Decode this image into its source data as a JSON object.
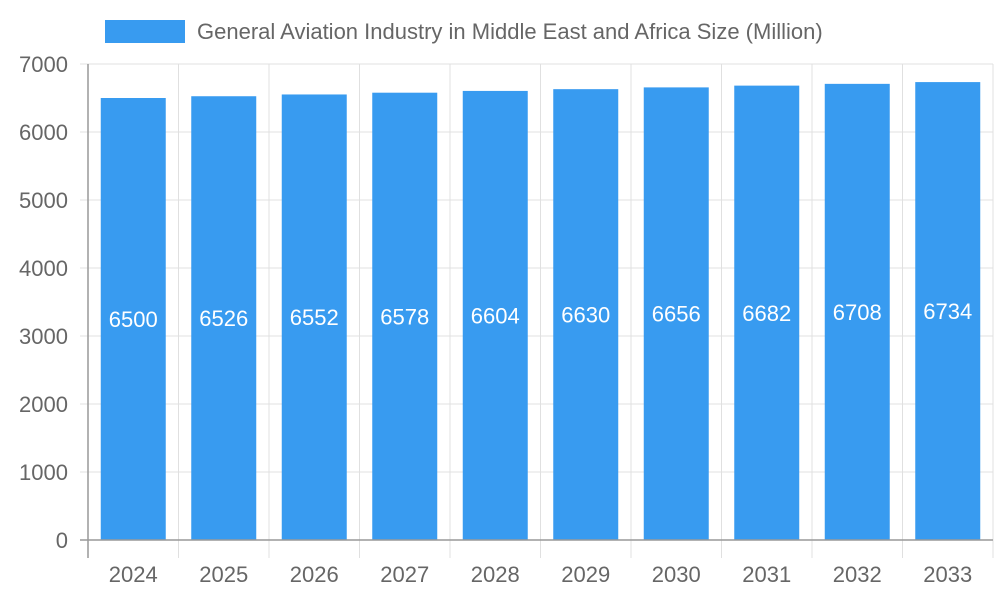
{
  "chart_data": {
    "type": "bar",
    "title": "",
    "xlabel": "",
    "ylabel": "",
    "categories": [
      "2024",
      "2025",
      "2026",
      "2027",
      "2028",
      "2029",
      "2030",
      "2031",
      "2032",
      "2033"
    ],
    "series": [
      {
        "name": "General Aviation Industry in Middle East and Africa Size (Million)",
        "values": [
          6500,
          6526,
          6552,
          6578,
          6604,
          6630,
          6656,
          6682,
          6708,
          6734
        ]
      }
    ],
    "ylim": [
      0,
      7000
    ],
    "yticks": [
      0,
      1000,
      2000,
      3000,
      4000,
      5000,
      6000,
      7000
    ],
    "grid": true,
    "legend": "top-center",
    "data_labels": true,
    "colors": {
      "bar": "#389bf0",
      "grid": "#e0e0e0",
      "axis": "#999999",
      "text": "#666666",
      "label": "#ffffff"
    }
  }
}
